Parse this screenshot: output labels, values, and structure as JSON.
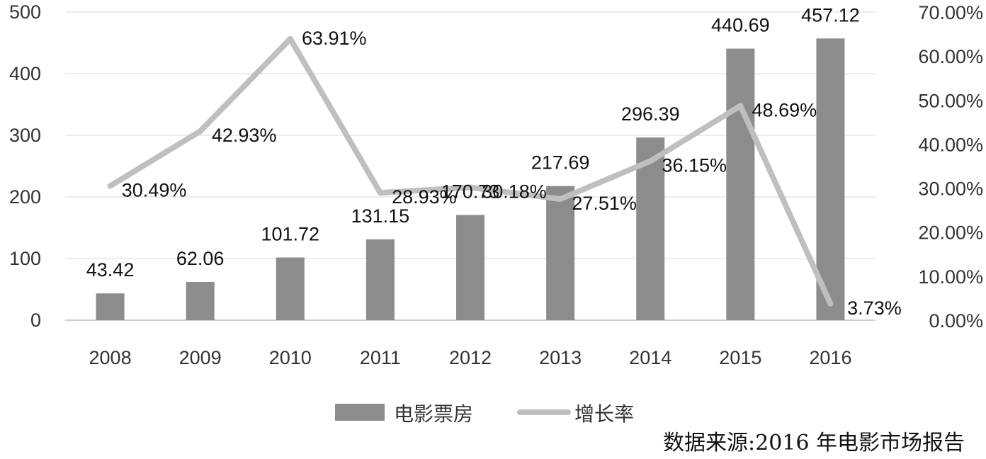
{
  "chart_data": {
    "type": "bar",
    "categories": [
      "2008",
      "2009",
      "2010",
      "2011",
      "2012",
      "2013",
      "2014",
      "2015",
      "2016"
    ],
    "series": [
      {
        "name": "电影票房",
        "type": "bar",
        "axis": "left",
        "values": [
          43.42,
          62.06,
          101.72,
          131.15,
          170.73,
          217.69,
          296.39,
          440.69,
          457.12
        ],
        "labels": [
          "43.42",
          "62.06",
          "101.72",
          "131.15",
          "170.73",
          "217.69",
          "296.39",
          "440.69",
          "457.12"
        ],
        "color": "#8c8c8c"
      },
      {
        "name": "增长率",
        "type": "line",
        "axis": "right",
        "values": [
          30.49,
          42.93,
          63.91,
          28.93,
          30.18,
          27.51,
          36.15,
          48.69,
          3.73
        ],
        "labels": [
          "30.49%",
          "42.93%",
          "63.91%",
          "28.93%",
          "30.18%",
          "27.51%",
          "36.15%",
          "48.69%",
          "3.73%"
        ],
        "color": "#bfbfbf"
      }
    ],
    "y_left": {
      "range": [
        0,
        500
      ],
      "ticks": [
        "0",
        "100",
        "200",
        "300",
        "400",
        "500"
      ]
    },
    "y_right": {
      "range": [
        0,
        70
      ],
      "ticks": [
        "0.00%",
        "10.00%",
        "20.00%",
        "30.00%",
        "40.00%",
        "50.00%",
        "60.00%",
        "70.00%"
      ]
    },
    "grid": true,
    "legend": "bottom",
    "source": "数据来源:2016 年电影市场报告"
  }
}
